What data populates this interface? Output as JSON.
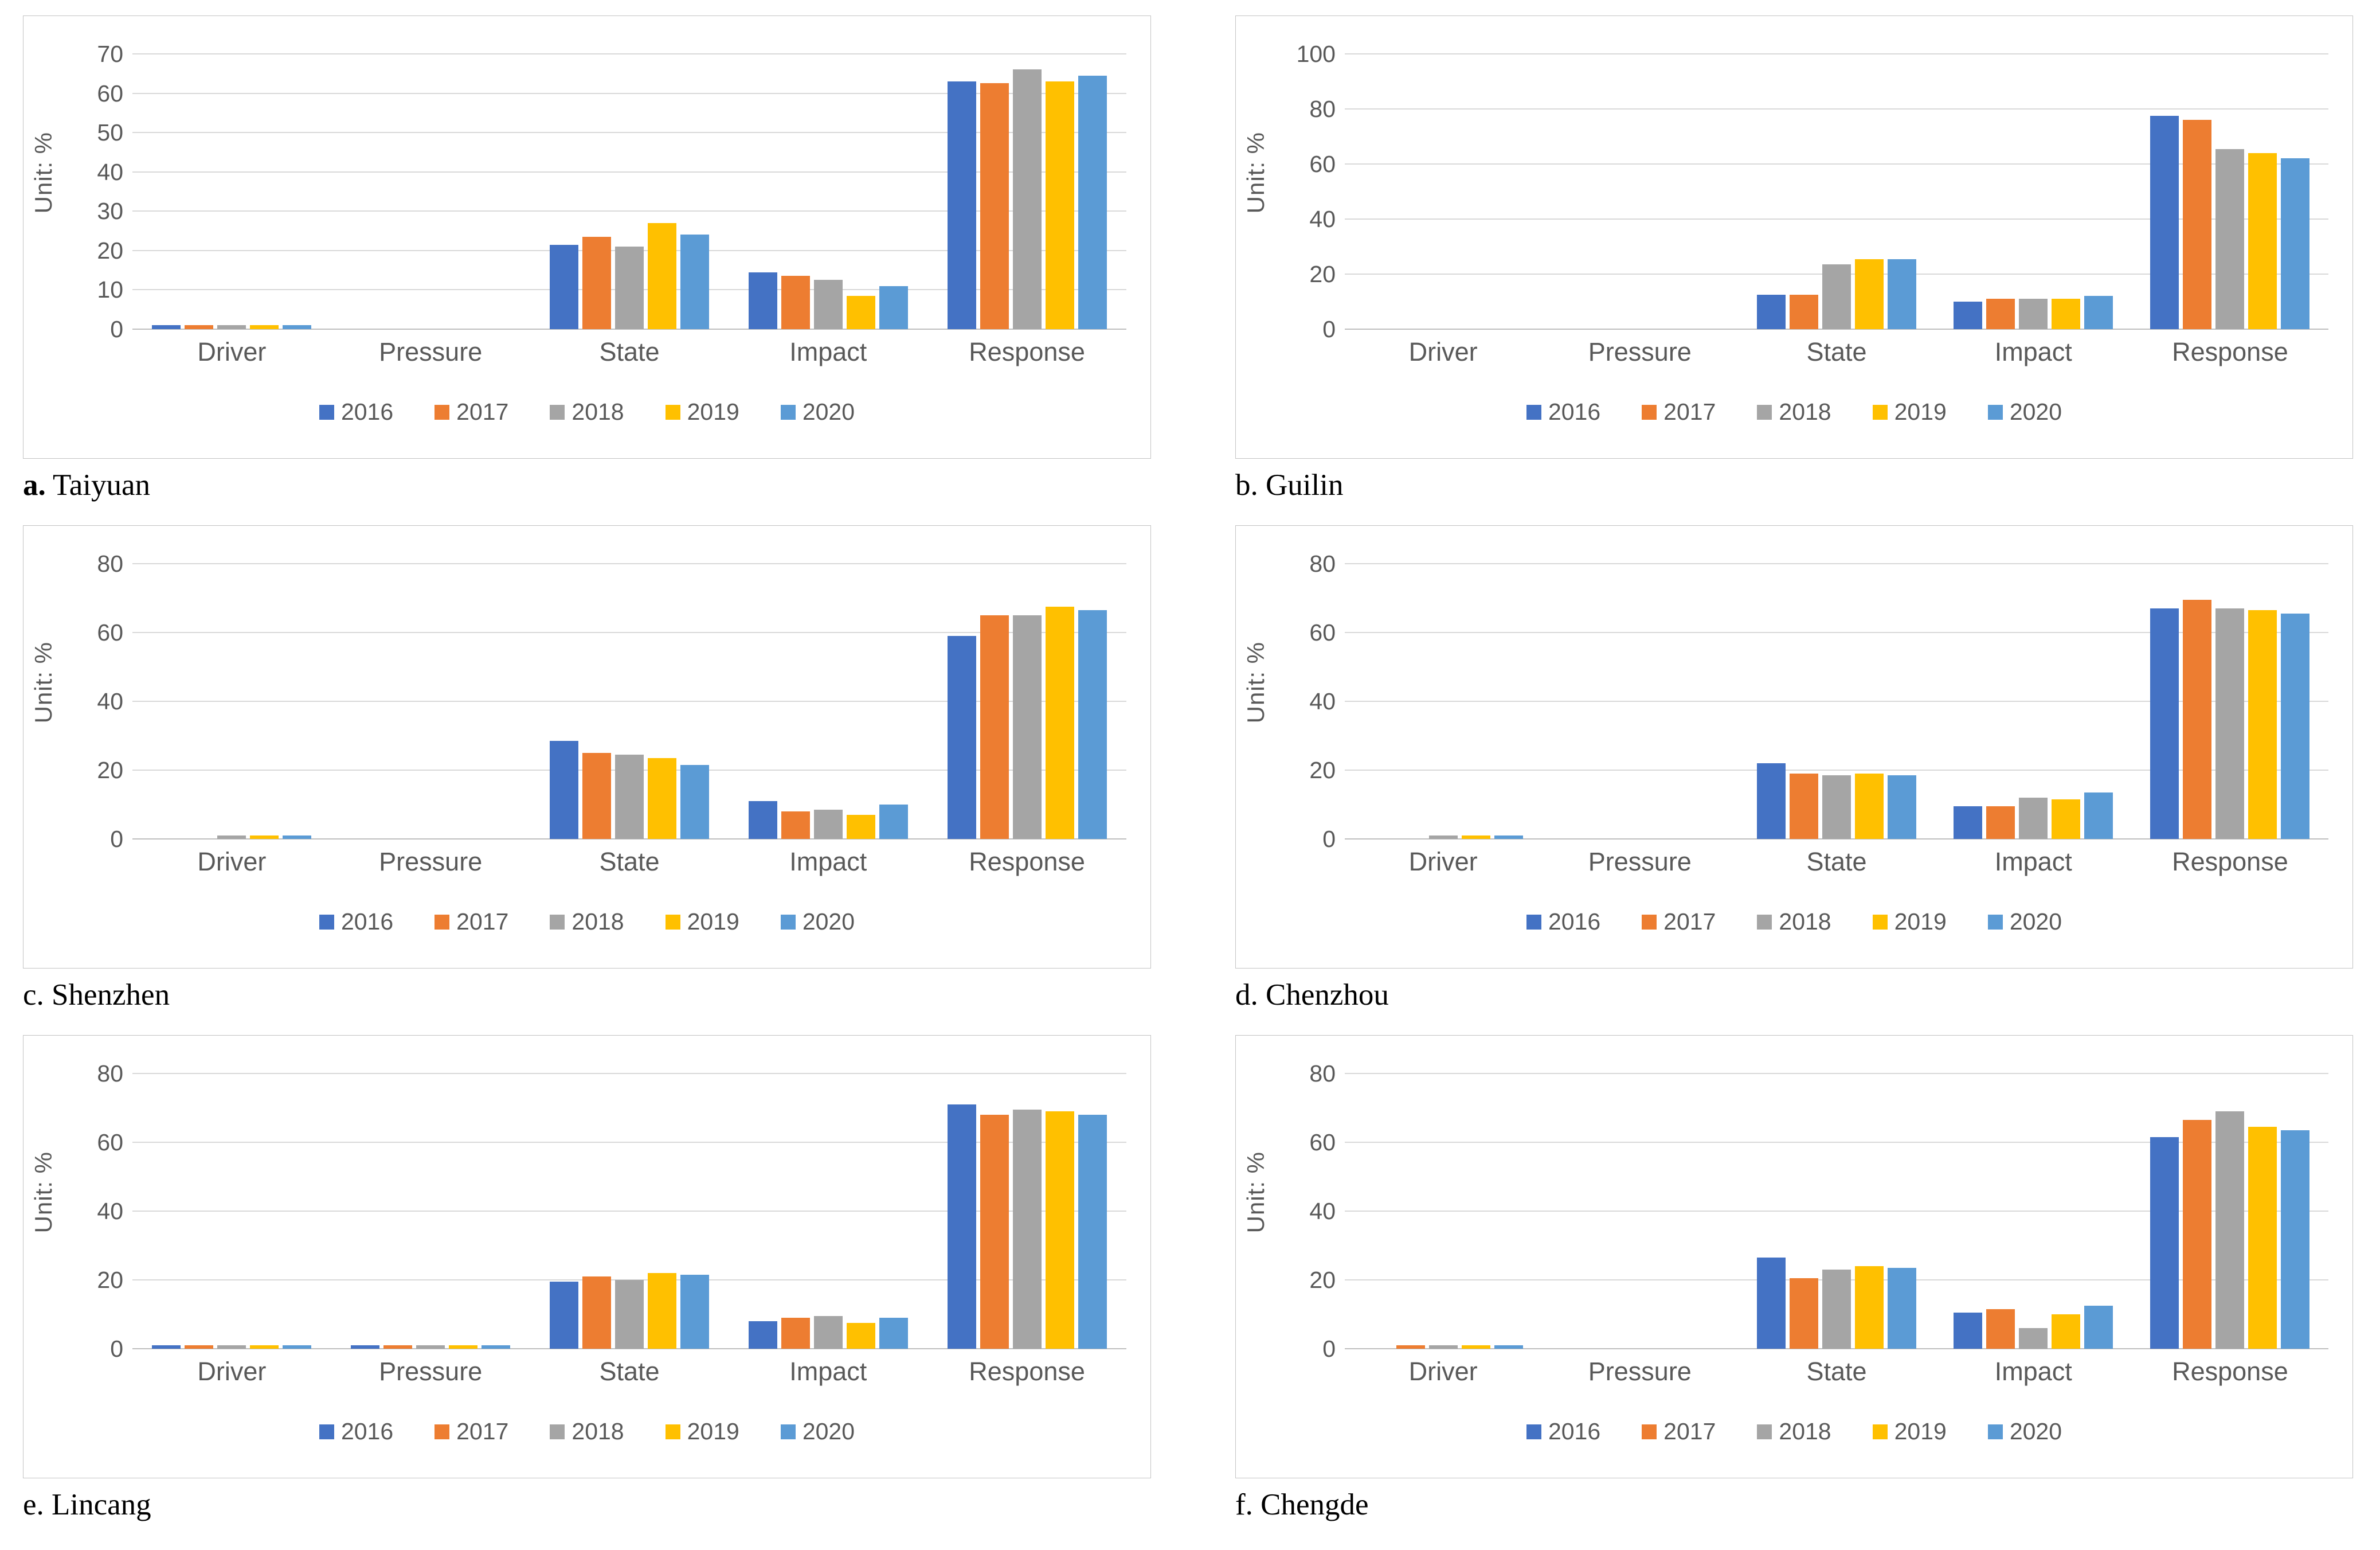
{
  "figure": {
    "description": "Six clustered bar charts comparing DPSIR category percentages for five years across six cities",
    "categories_label_set": [
      "Driver",
      "Pressure",
      "State",
      "Impact",
      "Response"
    ],
    "years": [
      "2016",
      "2017",
      "2018",
      "2019",
      "2020"
    ],
    "series_colors": [
      "#4472C4",
      "#ED7D31",
      "#A5A5A5",
      "#FFC000",
      "#5B9BD5"
    ],
    "panel_border_color": "#c3c3c3",
    "gridline_color": "#d9d9d9",
    "axis_text_color": "#595959"
  },
  "chart_data": [
    {
      "id": "a",
      "type": "bar",
      "caption_prefix": "a.",
      "caption": "Taiyuan",
      "caption_prefix_bold": true,
      "ylabel": "Unit: %",
      "ylim": [
        0,
        70
      ],
      "yticks": [
        0,
        10,
        20,
        30,
        40,
        50,
        60,
        70
      ],
      "grid": true,
      "legend_position": "bottom",
      "categories": [
        "Driver",
        "Pressure",
        "State",
        "Impact",
        "Response"
      ],
      "series": [
        {
          "name": "2016",
          "color": "#4472C4",
          "values": [
            1,
            0,
            21.5,
            14.5,
            63
          ]
        },
        {
          "name": "2017",
          "color": "#ED7D31",
          "values": [
            1,
            0,
            23.5,
            13.5,
            62.5
          ]
        },
        {
          "name": "2018",
          "color": "#A5A5A5",
          "values": [
            1,
            0,
            21,
            12.5,
            66
          ]
        },
        {
          "name": "2019",
          "color": "#FFC000",
          "values": [
            1,
            0,
            27,
            8.5,
            63
          ]
        },
        {
          "name": "2020",
          "color": "#5B9BD5",
          "values": [
            1,
            0,
            24,
            11,
            64.5
          ]
        }
      ]
    },
    {
      "id": "b",
      "type": "bar",
      "caption_prefix": "b.",
      "caption": "Guilin",
      "caption_prefix_bold": false,
      "ylabel": "Unit: %",
      "ylim": [
        0,
        100
      ],
      "yticks": [
        0,
        20,
        40,
        60,
        80,
        100
      ],
      "grid": true,
      "legend_position": "bottom",
      "categories": [
        "Driver",
        "Pressure",
        "State",
        "Impact",
        "Response"
      ],
      "series": [
        {
          "name": "2016",
          "color": "#4472C4",
          "values": [
            0,
            0,
            12.5,
            10,
            77.5
          ]
        },
        {
          "name": "2017",
          "color": "#ED7D31",
          "values": [
            0,
            0,
            12.5,
            11,
            76
          ]
        },
        {
          "name": "2018",
          "color": "#A5A5A5",
          "values": [
            0,
            0,
            23.5,
            11,
            65.5
          ]
        },
        {
          "name": "2019",
          "color": "#FFC000",
          "values": [
            0,
            0,
            25.5,
            11,
            64
          ]
        },
        {
          "name": "2020",
          "color": "#5B9BD5",
          "values": [
            0,
            0,
            25.5,
            12,
            62
          ]
        }
      ]
    },
    {
      "id": "c",
      "type": "bar",
      "caption_prefix": "c.",
      "caption": "Shenzhen",
      "caption_prefix_bold": false,
      "ylabel": "Unit: %",
      "ylim": [
        0,
        80
      ],
      "yticks": [
        0,
        20,
        40,
        60,
        80
      ],
      "grid": true,
      "legend_position": "bottom",
      "categories": [
        "Driver",
        "Pressure",
        "State",
        "Impact",
        "Response"
      ],
      "series": [
        {
          "name": "2016",
          "color": "#4472C4",
          "values": [
            0,
            0,
            28.5,
            11,
            59
          ]
        },
        {
          "name": "2017",
          "color": "#ED7D31",
          "values": [
            0,
            0,
            25,
            8,
            65
          ]
        },
        {
          "name": "2018",
          "color": "#A5A5A5",
          "values": [
            1,
            0,
            24.5,
            8.5,
            65
          ]
        },
        {
          "name": "2019",
          "color": "#FFC000",
          "values": [
            1,
            0,
            23.5,
            7,
            67.5
          ]
        },
        {
          "name": "2020",
          "color": "#5B9BD5",
          "values": [
            1,
            0,
            21.5,
            10,
            66.5
          ]
        }
      ]
    },
    {
      "id": "d",
      "type": "bar",
      "caption_prefix": "d.",
      "caption": "Chenzhou",
      "caption_prefix_bold": false,
      "ylabel": "Unit: %",
      "ylim": [
        0,
        80
      ],
      "yticks": [
        0,
        20,
        40,
        60,
        80
      ],
      "grid": true,
      "legend_position": "bottom",
      "categories": [
        "Driver",
        "Pressure",
        "State",
        "Impact",
        "Response"
      ],
      "series": [
        {
          "name": "2016",
          "color": "#4472C4",
          "values": [
            0,
            0,
            22,
            9.5,
            67
          ]
        },
        {
          "name": "2017",
          "color": "#ED7D31",
          "values": [
            0,
            0,
            19,
            9.5,
            69.5
          ]
        },
        {
          "name": "2018",
          "color": "#A5A5A5",
          "values": [
            1,
            0,
            18.5,
            12,
            67
          ]
        },
        {
          "name": "2019",
          "color": "#FFC000",
          "values": [
            1,
            0,
            19,
            11.5,
            66.5
          ]
        },
        {
          "name": "2020",
          "color": "#5B9BD5",
          "values": [
            1,
            0,
            18.5,
            13.5,
            65.5
          ]
        }
      ]
    },
    {
      "id": "e",
      "type": "bar",
      "caption_prefix": "e.",
      "caption": "Lincang",
      "caption_prefix_bold": false,
      "ylabel": "Unit: %",
      "ylim": [
        0,
        80
      ],
      "yticks": [
        0,
        20,
        40,
        60,
        80
      ],
      "grid": true,
      "legend_position": "bottom",
      "categories": [
        "Driver",
        "Pressure",
        "State",
        "Impact",
        "Response"
      ],
      "series": [
        {
          "name": "2016",
          "color": "#4472C4",
          "values": [
            1,
            1,
            19.5,
            8,
            71
          ]
        },
        {
          "name": "2017",
          "color": "#ED7D31",
          "values": [
            1,
            1,
            21,
            9,
            68
          ]
        },
        {
          "name": "2018",
          "color": "#A5A5A5",
          "values": [
            1,
            1,
            20,
            9.5,
            69.5
          ]
        },
        {
          "name": "2019",
          "color": "#FFC000",
          "values": [
            1,
            1,
            22,
            7.5,
            69
          ]
        },
        {
          "name": "2020",
          "color": "#5B9BD5",
          "values": [
            1,
            1,
            21.5,
            9,
            68
          ]
        }
      ]
    },
    {
      "id": "f",
      "type": "bar",
      "caption_prefix": "f.",
      "caption": "Chengde",
      "caption_prefix_bold": false,
      "ylabel": "Unit: %",
      "ylim": [
        0,
        80
      ],
      "yticks": [
        0,
        20,
        40,
        60,
        80
      ],
      "grid": true,
      "legend_position": "bottom",
      "categories": [
        "Driver",
        "Pressure",
        "State",
        "Impact",
        "Response"
      ],
      "series": [
        {
          "name": "2016",
          "color": "#4472C4",
          "values": [
            0,
            0,
            26.5,
            10.5,
            61.5
          ]
        },
        {
          "name": "2017",
          "color": "#ED7D31",
          "values": [
            1,
            0,
            20.5,
            11.5,
            66.5
          ]
        },
        {
          "name": "2018",
          "color": "#A5A5A5",
          "values": [
            1,
            0,
            23,
            6,
            69
          ]
        },
        {
          "name": "2019",
          "color": "#FFC000",
          "values": [
            1,
            0,
            24,
            10,
            64.5
          ]
        },
        {
          "name": "2020",
          "color": "#5B9BD5",
          "values": [
            1,
            0,
            23.5,
            12.5,
            63.5
          ]
        }
      ]
    }
  ]
}
